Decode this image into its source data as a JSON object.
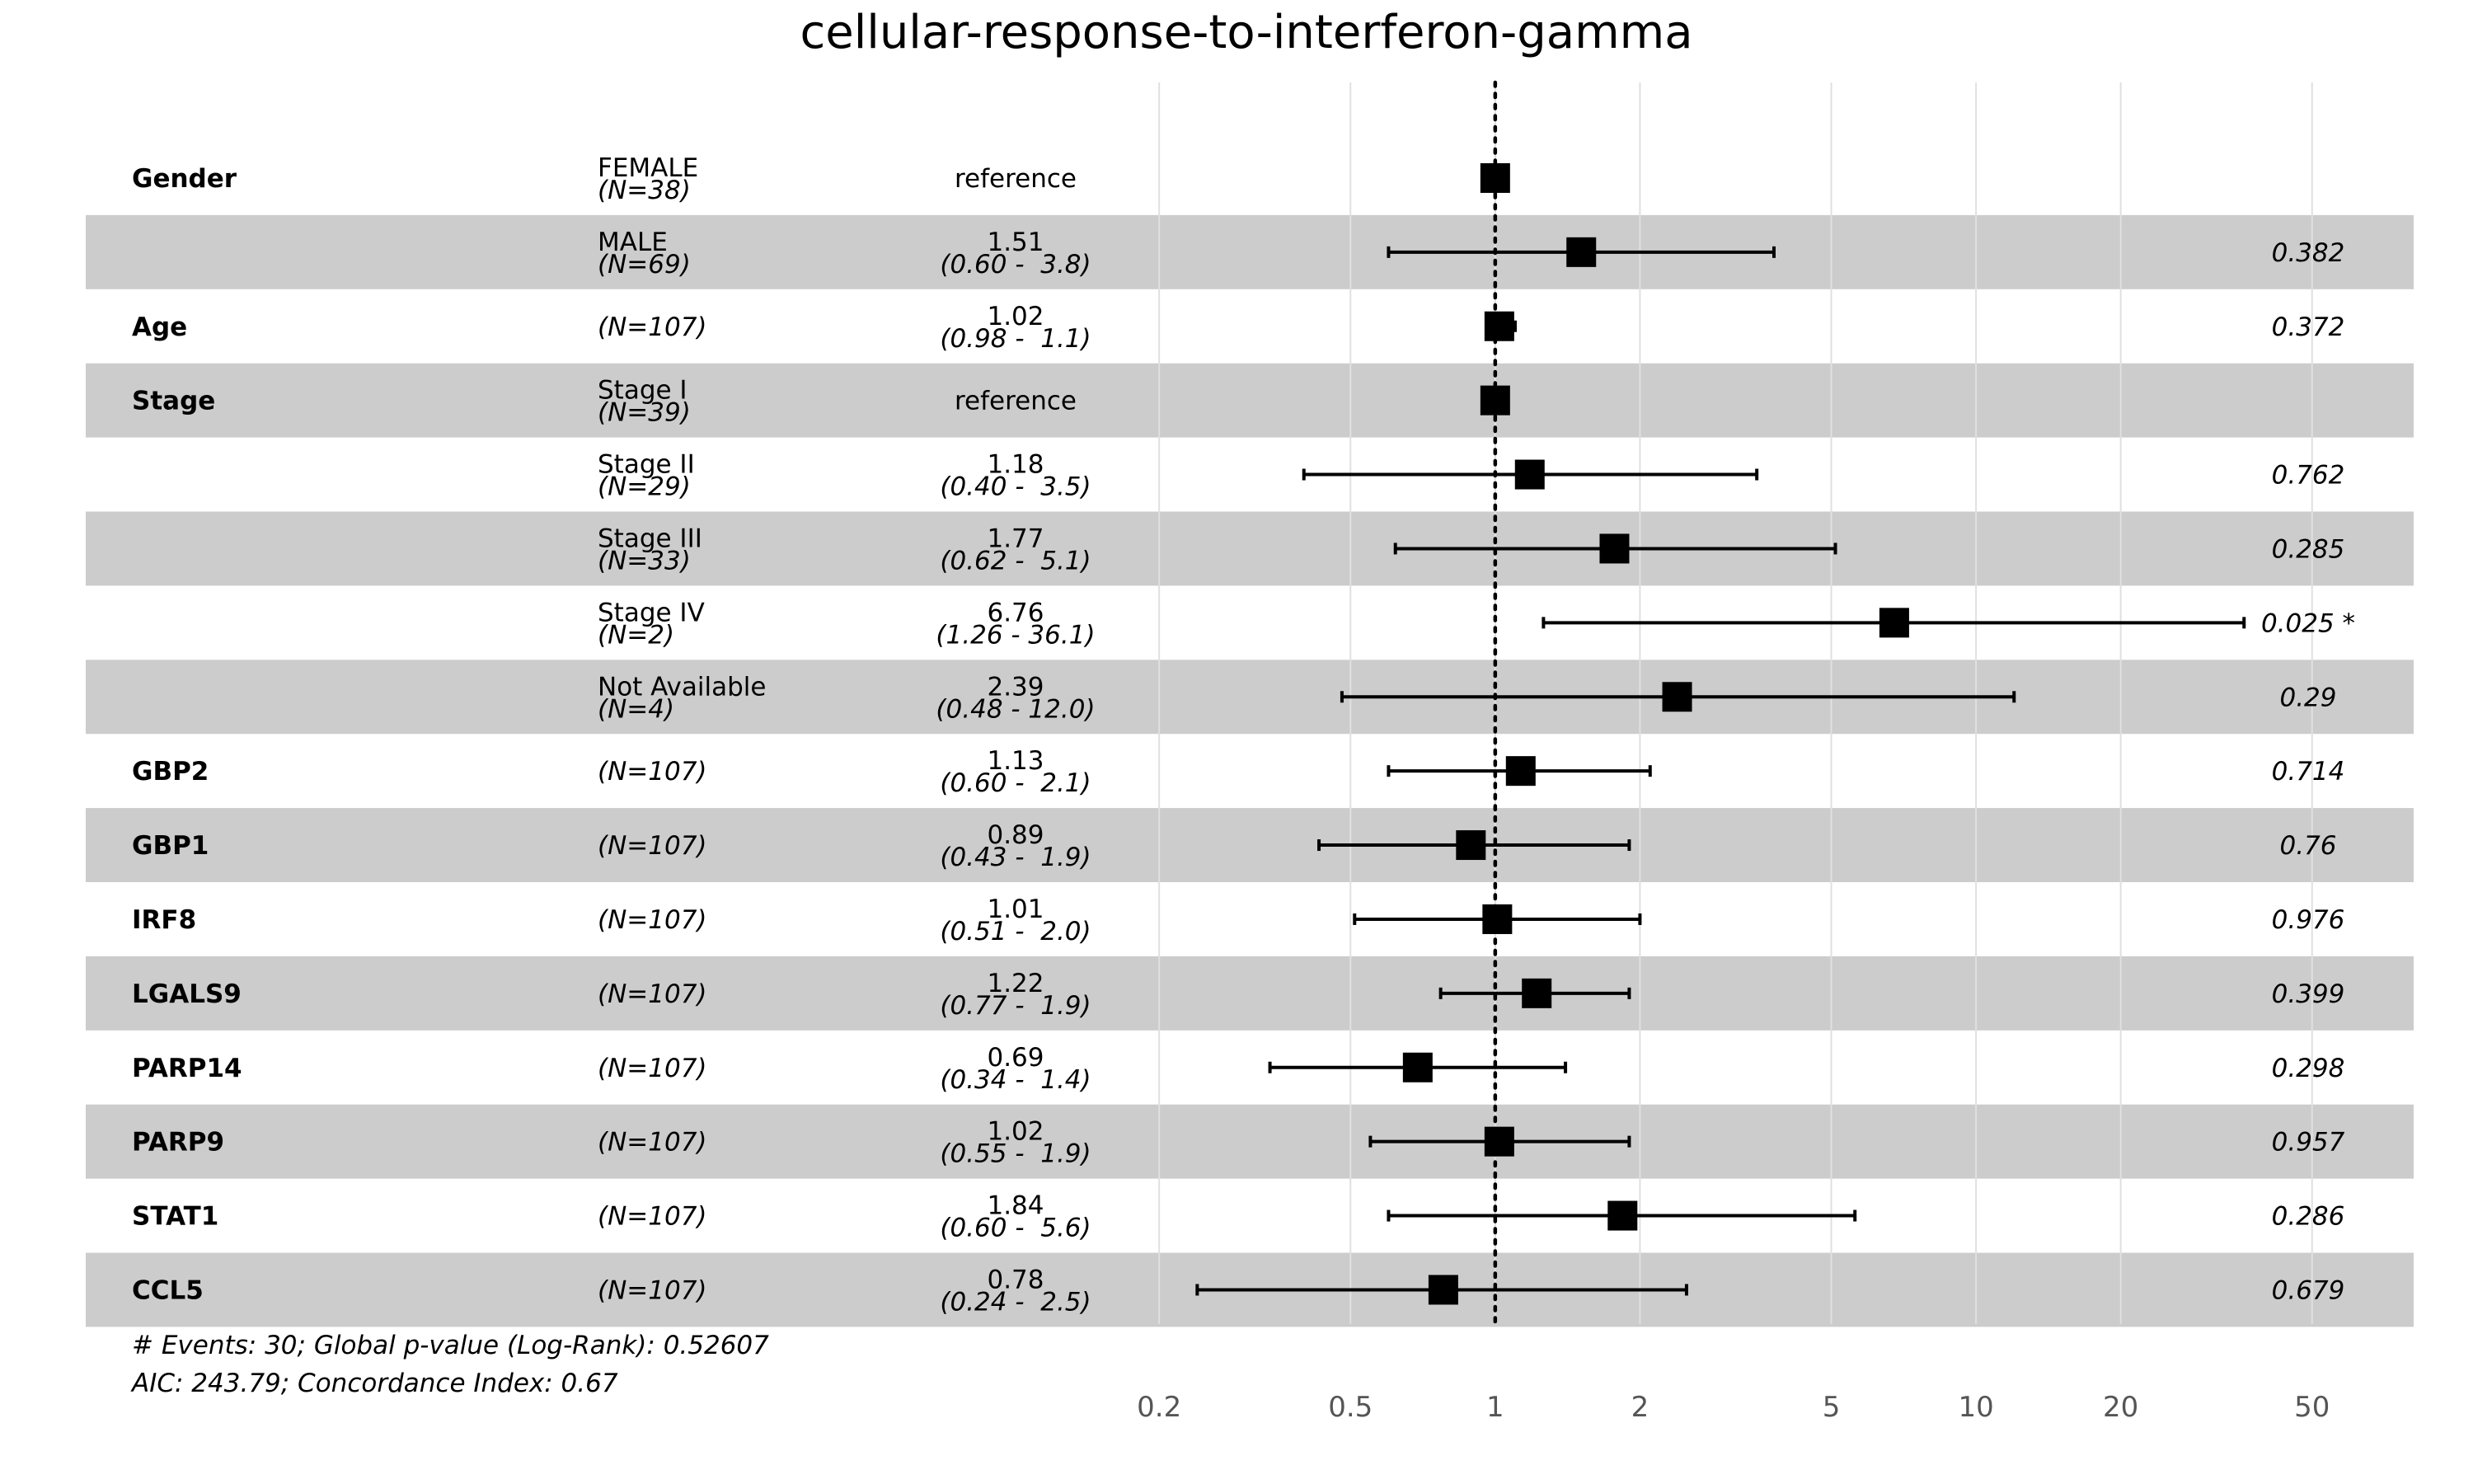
{
  "chart_data": {
    "type": "forest",
    "title": "cellular-response-to-interferon-gamma",
    "x_scale": "log",
    "xlim": [
      0.17,
      70
    ],
    "reference_line": 1,
    "x_ticks": [
      0.2,
      0.5,
      1,
      2,
      5,
      10,
      20,
      50
    ],
    "x_tick_labels": [
      "0.2",
      "0.5",
      "1",
      "2",
      "5",
      "10",
      "20",
      "50"
    ],
    "rows": [
      {
        "variable": "Gender",
        "level": "FEMALE",
        "n": "(N=38)",
        "hr": 1,
        "hr_label": "reference",
        "ci_label": "",
        "lower": null,
        "upper": null,
        "p": ""
      },
      {
        "variable": "",
        "level": "MALE",
        "n": "(N=69)",
        "hr": 1.51,
        "hr_label": "1.51",
        "ci_label": "(0.60 -  3.8)",
        "lower": 0.6,
        "upper": 3.8,
        "p": "0.382"
      },
      {
        "variable": "Age",
        "level": "",
        "n": "(N=107)",
        "hr": 1.02,
        "hr_label": "1.02",
        "ci_label": "(0.98 -  1.1)",
        "lower": 0.98,
        "upper": 1.1,
        "p": "0.372"
      },
      {
        "variable": "Stage",
        "level": "Stage I",
        "n": "(N=39)",
        "hr": 1,
        "hr_label": "reference",
        "ci_label": "",
        "lower": null,
        "upper": null,
        "p": ""
      },
      {
        "variable": "",
        "level": "Stage II",
        "n": "(N=29)",
        "hr": 1.18,
        "hr_label": "1.18",
        "ci_label": "(0.40 -  3.5)",
        "lower": 0.4,
        "upper": 3.5,
        "p": "0.762"
      },
      {
        "variable": "",
        "level": "Stage III",
        "n": "(N=33)",
        "hr": 1.77,
        "hr_label": "1.77",
        "ci_label": "(0.62 -  5.1)",
        "lower": 0.62,
        "upper": 5.1,
        "p": "0.285"
      },
      {
        "variable": "",
        "level": "Stage IV",
        "n": "(N=2)",
        "hr": 6.76,
        "hr_label": "6.76",
        "ci_label": "(1.26 - 36.1)",
        "lower": 1.26,
        "upper": 36.1,
        "p": "0.025 *"
      },
      {
        "variable": "",
        "level": "Not Available",
        "n": "(N=4)",
        "hr": 2.39,
        "hr_label": "2.39",
        "ci_label": "(0.48 - 12.0)",
        "lower": 0.48,
        "upper": 12.0,
        "p": "0.29"
      },
      {
        "variable": "GBP2",
        "level": "",
        "n": "(N=107)",
        "hr": 1.13,
        "hr_label": "1.13",
        "ci_label": "(0.60 -  2.1)",
        "lower": 0.6,
        "upper": 2.1,
        "p": "0.714"
      },
      {
        "variable": "GBP1",
        "level": "",
        "n": "(N=107)",
        "hr": 0.89,
        "hr_label": "0.89",
        "ci_label": "(0.43 -  1.9)",
        "lower": 0.43,
        "upper": 1.9,
        "p": "0.76"
      },
      {
        "variable": "IRF8",
        "level": "",
        "n": "(N=107)",
        "hr": 1.01,
        "hr_label": "1.01",
        "ci_label": "(0.51 -  2.0)",
        "lower": 0.51,
        "upper": 2.0,
        "p": "0.976"
      },
      {
        "variable": "LGALS9",
        "level": "",
        "n": "(N=107)",
        "hr": 1.22,
        "hr_label": "1.22",
        "ci_label": "(0.77 -  1.9)",
        "lower": 0.77,
        "upper": 1.9,
        "p": "0.399"
      },
      {
        "variable": "PARP14",
        "level": "",
        "n": "(N=107)",
        "hr": 0.69,
        "hr_label": "0.69",
        "ci_label": "(0.34 -  1.4)",
        "lower": 0.34,
        "upper": 1.4,
        "p": "0.298"
      },
      {
        "variable": "PARP9",
        "level": "",
        "n": "(N=107)",
        "hr": 1.02,
        "hr_label": "1.02",
        "ci_label": "(0.55 -  1.9)",
        "lower": 0.55,
        "upper": 1.9,
        "p": "0.957"
      },
      {
        "variable": "STAT1",
        "level": "",
        "n": "(N=107)",
        "hr": 1.84,
        "hr_label": "1.84",
        "ci_label": "(0.60 -  5.6)",
        "lower": 0.6,
        "upper": 5.6,
        "p": "0.286"
      },
      {
        "variable": "CCL5",
        "level": "",
        "n": "(N=107)",
        "hr": 0.78,
        "hr_label": "0.78",
        "ci_label": "(0.24 -  2.5)",
        "lower": 0.24,
        "upper": 2.5,
        "p": "0.679"
      }
    ],
    "footnotes": [
      "# Events: 30; Global p-value (Log-Rank): 0.52607",
      "AIC: 243.79; Concordance Index: 0.67"
    ],
    "colors": {
      "stripe": "#cccccc",
      "background": "#ffffff",
      "grid": "#e0e0e0",
      "marker": "#000000",
      "tick_text": "#555555"
    }
  }
}
